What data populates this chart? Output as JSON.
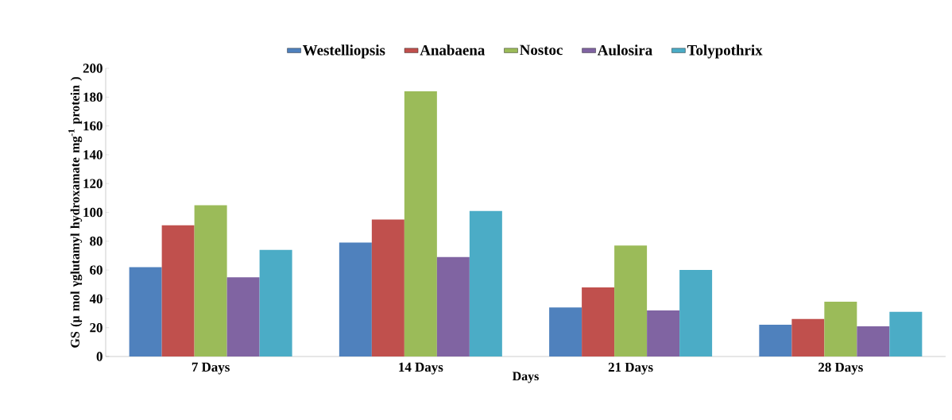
{
  "chart_data": {
    "type": "bar",
    "xlabel": "Days",
    "ylabel": "GS (µ mol γglutamyl hydroxamate mg$^{-1}$ protein )",
    "categories": [
      "7 Days",
      "14 Days",
      "21 Days",
      "28 Days"
    ],
    "series": [
      {
        "name": "Westelliopsis",
        "color": "#4f81bd",
        "values": [
          62,
          79,
          34,
          22
        ]
      },
      {
        "name": "Anabaena",
        "color": "#c0504d",
        "values": [
          91,
          95,
          48,
          26
        ]
      },
      {
        "name": "Nostoc",
        "color": "#9bbb59",
        "values": [
          105,
          184,
          77,
          38
        ]
      },
      {
        "name": "Aulosira",
        "color": "#8064a2",
        "values": [
          55,
          69,
          32,
          21
        ]
      },
      {
        "name": "Tolypothrix",
        "color": "#4bacc6",
        "values": [
          74,
          101,
          60,
          31
        ]
      }
    ],
    "ylim": [
      0,
      200
    ],
    "yticks": [
      0,
      20,
      40,
      60,
      80,
      100,
      120,
      140,
      160,
      180,
      200
    ],
    "legend": "top"
  }
}
